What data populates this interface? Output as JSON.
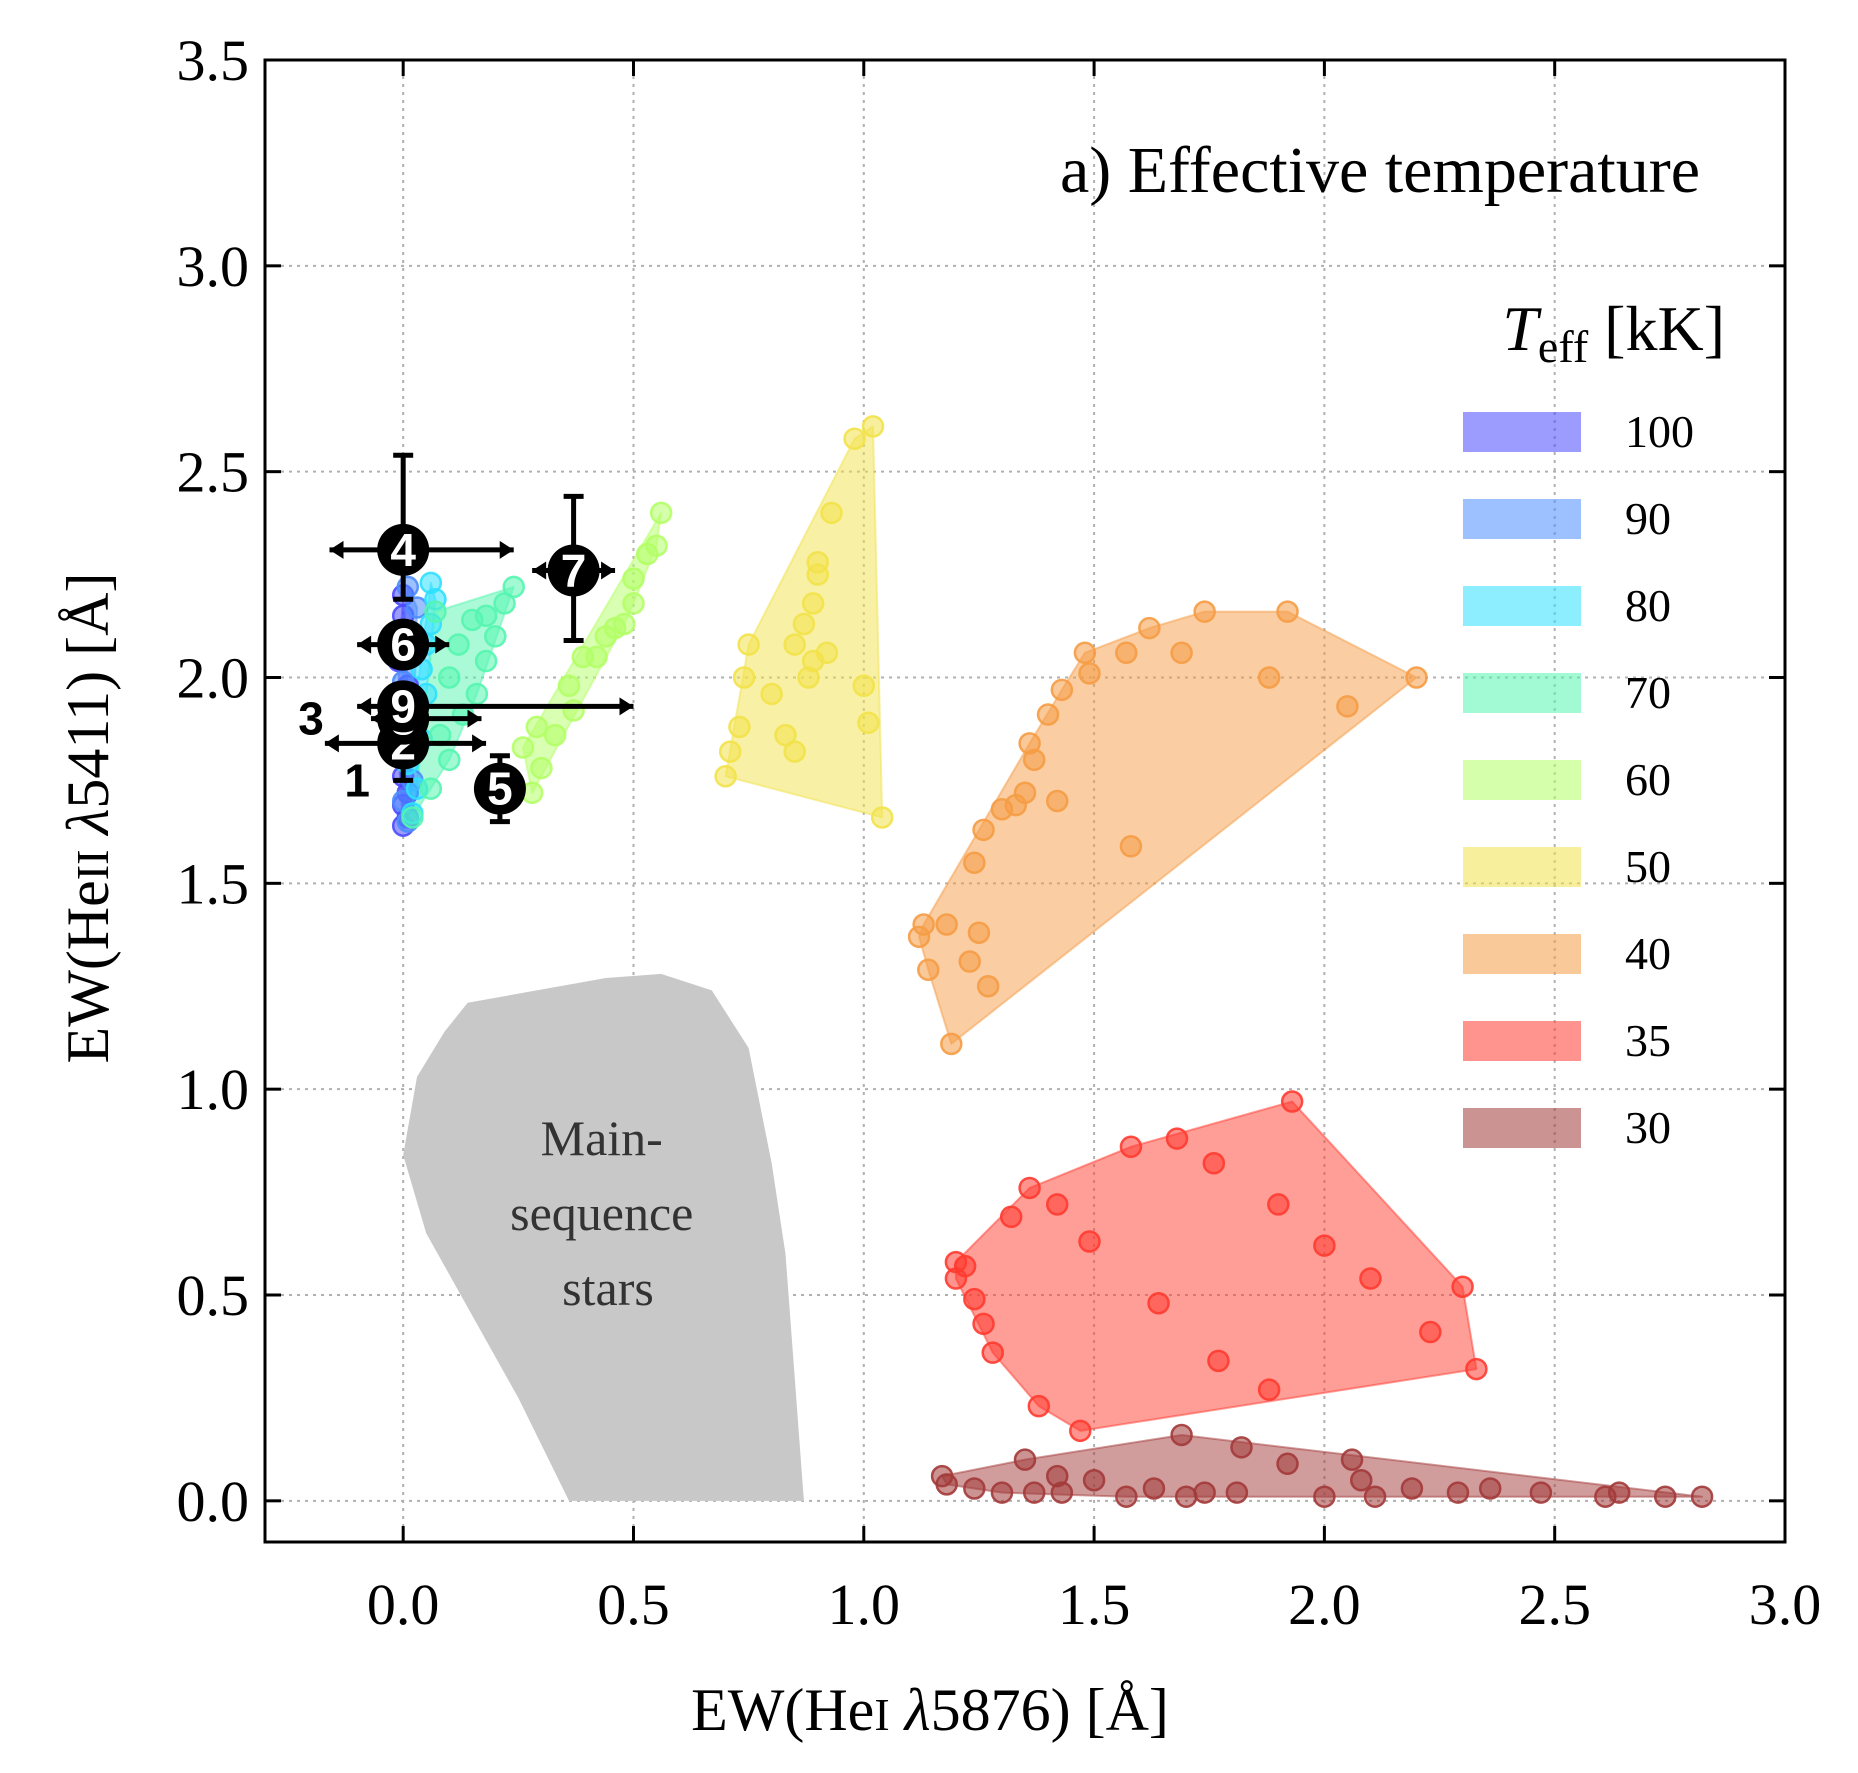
{
  "chart_data": {
    "type": "scatter",
    "title": "a) Effective temperature",
    "xlabel": "EW(He I λ5876) [Å]",
    "ylabel": "EW(He II λ5411) [Å]",
    "xlabel_parts": {
      "pre": "EW(He",
      "ion": "I",
      "mid": " ",
      "lambda": "λ",
      "post": "5876) [Å]"
    },
    "ylabel_parts": {
      "pre": "EW(He",
      "ion": "II",
      "mid": " ",
      "lambda": "λ",
      "post": "5411) [Å]"
    },
    "xlim": [
      -0.3,
      3.0
    ],
    "ylim": [
      -0.1,
      3.5
    ],
    "x_ticks": [
      "0.0",
      "0.5",
      "1.0",
      "1.5",
      "2.0",
      "2.5",
      "3.0"
    ],
    "y_ticks": [
      "0.0",
      "0.5",
      "1.0",
      "1.5",
      "2.0",
      "2.5",
      "3.0",
      "3.5"
    ],
    "grid": true,
    "legend": {
      "position": "right",
      "title_symbol": "T",
      "title_sub": "eff",
      "title_unit": " [kK]"
    },
    "main_sequence": {
      "label_lines": [
        "Main-",
        "sequence",
        "stars"
      ],
      "color": "#c8c8c8",
      "polygon": [
        [
          0.36,
          0.0
        ],
        [
          0.87,
          0.0
        ],
        [
          0.83,
          0.6
        ],
        [
          0.8,
          0.82
        ],
        [
          0.75,
          1.1
        ],
        [
          0.67,
          1.24
        ],
        [
          0.56,
          1.28
        ],
        [
          0.44,
          1.27
        ],
        [
          0.14,
          1.21
        ],
        [
          0.09,
          1.14
        ],
        [
          0.03,
          1.03
        ],
        [
          0.0,
          0.84
        ],
        [
          0.05,
          0.65
        ],
        [
          0.15,
          0.45
        ],
        [
          0.25,
          0.25
        ]
      ]
    },
    "series": [
      {
        "name": "100",
        "color": "#4b4bff",
        "points": [
          [
            0.0,
            1.64
          ],
          [
            0.01,
            1.66
          ],
          [
            0.0,
            1.69
          ],
          [
            0.01,
            1.72
          ],
          [
            0.0,
            1.76
          ],
          [
            -0.01,
            1.81
          ],
          [
            0.0,
            1.86
          ],
          [
            0.0,
            1.92
          ],
          [
            0.01,
            1.98
          ],
          [
            -0.01,
            2.04
          ],
          [
            0.0,
            2.1
          ],
          [
            0.0,
            2.15
          ],
          [
            0.0,
            2.2
          ]
        ]
      },
      {
        "name": "90",
        "color": "#4d8dff",
        "points": [
          [
            0.01,
            1.65
          ],
          [
            0.0,
            1.7
          ],
          [
            0.02,
            1.75
          ],
          [
            0.0,
            1.8
          ],
          [
            0.01,
            1.86
          ],
          [
            0.02,
            1.93
          ],
          [
            0.0,
            1.99
          ],
          [
            0.02,
            2.05
          ],
          [
            0.0,
            2.11
          ],
          [
            0.03,
            2.17
          ],
          [
            0.01,
            2.22
          ]
        ]
      },
      {
        "name": "80",
        "color": "#2ee0ff",
        "points": [
          [
            0.02,
            1.67
          ],
          [
            0.03,
            1.73
          ],
          [
            0.01,
            1.79
          ],
          [
            0.04,
            1.85
          ],
          [
            0.03,
            1.9
          ],
          [
            0.05,
            1.96
          ],
          [
            0.04,
            2.02
          ],
          [
            0.05,
            2.08
          ],
          [
            0.06,
            2.13
          ],
          [
            0.07,
            2.19
          ],
          [
            0.06,
            2.23
          ]
        ]
      },
      {
        "name": "70",
        "color": "#55f5b0",
        "points": [
          [
            0.02,
            1.66
          ],
          [
            0.06,
            1.73
          ],
          [
            0.1,
            1.8
          ],
          [
            0.08,
            1.86
          ],
          [
            0.13,
            1.91
          ],
          [
            0.16,
            1.96
          ],
          [
            0.1,
            2.0
          ],
          [
            0.18,
            2.04
          ],
          [
            0.12,
            2.08
          ],
          [
            0.2,
            2.1
          ],
          [
            0.15,
            2.14
          ],
          [
            0.22,
            2.18
          ],
          [
            0.18,
            2.15
          ],
          [
            0.24,
            2.22
          ],
          [
            0.07,
            2.16
          ]
        ]
      },
      {
        "name": "60",
        "color": "#b3ff66",
        "points": [
          [
            0.28,
            1.72
          ],
          [
            0.3,
            1.78
          ],
          [
            0.26,
            1.83
          ],
          [
            0.33,
            1.86
          ],
          [
            0.29,
            1.88
          ],
          [
            0.37,
            1.92
          ],
          [
            0.36,
            1.98
          ],
          [
            0.39,
            2.05
          ],
          [
            0.42,
            2.05
          ],
          [
            0.44,
            2.1
          ],
          [
            0.46,
            2.12
          ],
          [
            0.48,
            2.13
          ],
          [
            0.5,
            2.18
          ],
          [
            0.5,
            2.24
          ],
          [
            0.53,
            2.3
          ],
          [
            0.55,
            2.32
          ],
          [
            0.56,
            2.4
          ]
        ]
      },
      {
        "name": "50",
        "color": "#f2e24a",
        "points": [
          [
            0.7,
            1.76
          ],
          [
            0.71,
            1.82
          ],
          [
            0.73,
            1.88
          ],
          [
            0.74,
            2.0
          ],
          [
            0.75,
            2.08
          ],
          [
            0.8,
            1.96
          ],
          [
            0.83,
            1.86
          ],
          [
            0.85,
            2.08
          ],
          [
            0.85,
            1.82
          ],
          [
            0.87,
            2.13
          ],
          [
            0.88,
            2.0
          ],
          [
            0.89,
            2.18
          ],
          [
            0.9,
            2.25
          ],
          [
            0.9,
            2.28
          ],
          [
            0.93,
            2.4
          ],
          [
            0.98,
            2.58
          ],
          [
            1.02,
            2.61
          ],
          [
            1.0,
            1.98
          ],
          [
            1.01,
            1.89
          ],
          [
            1.04,
            1.66
          ],
          [
            0.92,
            2.06
          ],
          [
            0.89,
            2.04
          ]
        ]
      },
      {
        "name": "40",
        "color": "#f59c45",
        "points": [
          [
            1.19,
            1.11
          ],
          [
            1.14,
            1.29
          ],
          [
            1.12,
            1.37
          ],
          [
            1.13,
            1.4
          ],
          [
            1.18,
            1.4
          ],
          [
            1.23,
            1.31
          ],
          [
            1.25,
            1.38
          ],
          [
            1.27,
            1.25
          ],
          [
            1.24,
            1.55
          ],
          [
            1.26,
            1.63
          ],
          [
            1.3,
            1.68
          ],
          [
            1.33,
            1.69
          ],
          [
            1.35,
            1.72
          ],
          [
            1.36,
            1.84
          ],
          [
            1.37,
            1.8
          ],
          [
            1.4,
            1.91
          ],
          [
            1.42,
            1.7
          ],
          [
            1.43,
            1.97
          ],
          [
            1.48,
            2.06
          ],
          [
            1.49,
            2.01
          ],
          [
            1.57,
            2.06
          ],
          [
            1.58,
            1.59
          ],
          [
            1.62,
            2.12
          ],
          [
            1.69,
            2.06
          ],
          [
            1.74,
            2.16
          ],
          [
            1.88,
            2.0
          ],
          [
            1.92,
            2.16
          ],
          [
            2.05,
            1.93
          ],
          [
            2.2,
            2.0
          ]
        ]
      },
      {
        "name": "35",
        "color": "#ff3b30",
        "points": [
          [
            1.2,
            0.58
          ],
          [
            1.2,
            0.54
          ],
          [
            1.22,
            0.57
          ],
          [
            1.24,
            0.49
          ],
          [
            1.26,
            0.43
          ],
          [
            1.28,
            0.36
          ],
          [
            1.32,
            0.69
          ],
          [
            1.36,
            0.76
          ],
          [
            1.38,
            0.23
          ],
          [
            1.42,
            0.72
          ],
          [
            1.47,
            0.17
          ],
          [
            1.49,
            0.63
          ],
          [
            1.58,
            0.86
          ],
          [
            1.64,
            0.48
          ],
          [
            1.68,
            0.88
          ],
          [
            1.76,
            0.82
          ],
          [
            1.77,
            0.34
          ],
          [
            1.88,
            0.27
          ],
          [
            1.9,
            0.72
          ],
          [
            1.93,
            0.97
          ],
          [
            2.0,
            0.62
          ],
          [
            2.1,
            0.54
          ],
          [
            2.23,
            0.41
          ],
          [
            2.3,
            0.52
          ],
          [
            2.33,
            0.32
          ]
        ]
      },
      {
        "name": "30",
        "color": "#a33a3a",
        "points": [
          [
            1.17,
            0.06
          ],
          [
            1.18,
            0.04
          ],
          [
            1.24,
            0.03
          ],
          [
            1.3,
            0.02
          ],
          [
            1.35,
            0.1
          ],
          [
            1.37,
            0.02
          ],
          [
            1.42,
            0.06
          ],
          [
            1.43,
            0.02
          ],
          [
            1.5,
            0.05
          ],
          [
            1.57,
            0.01
          ],
          [
            1.63,
            0.03
          ],
          [
            1.69,
            0.16
          ],
          [
            1.7,
            0.01
          ],
          [
            1.74,
            0.02
          ],
          [
            1.81,
            0.02
          ],
          [
            1.82,
            0.13
          ],
          [
            1.92,
            0.09
          ],
          [
            2.0,
            0.01
          ],
          [
            2.06,
            0.1
          ],
          [
            2.08,
            0.05
          ],
          [
            2.11,
            0.01
          ],
          [
            2.19,
            0.03
          ],
          [
            2.29,
            0.02
          ],
          [
            2.36,
            0.03
          ],
          [
            2.47,
            0.02
          ],
          [
            2.61,
            0.01
          ],
          [
            2.64,
            0.02
          ],
          [
            2.74,
            0.01
          ],
          [
            2.82,
            0.01
          ]
        ]
      }
    ],
    "stars": [
      {
        "id": "1",
        "x": -0.1,
        "y": 1.75,
        "xerr": [
          0,
          0
        ],
        "yerr": [
          0.03,
          0.0
        ],
        "label_only": true
      },
      {
        "id": "2",
        "x": 0.0,
        "y": 1.84,
        "xerr": [
          0.17,
          0.18
        ],
        "yerr": [
          0.09,
          0.0
        ]
      },
      {
        "id": "3",
        "x": -0.2,
        "y": 1.9,
        "xerr": [
          0,
          0
        ],
        "yerr": [
          0,
          0
        ],
        "label_only": true
      },
      {
        "id": "8",
        "x": 0.0,
        "y": 1.9,
        "xerr": [
          0.07,
          0.17
        ],
        "yerr": [
          0,
          0
        ]
      },
      {
        "id": "9",
        "x": 0.0,
        "y": 1.93,
        "xerr": [
          0.1,
          0.5
        ],
        "yerr": [
          0,
          0
        ]
      },
      {
        "id": "4",
        "x": 0.0,
        "y": 2.31,
        "xerr": [
          0.16,
          0.24
        ],
        "yerr": [
          0.12,
          0.23
        ]
      },
      {
        "id": "5",
        "x": 0.21,
        "y": 1.73,
        "xerr": [
          0.04,
          0.04
        ],
        "yerr": [
          0.08,
          0.08
        ]
      },
      {
        "id": "6",
        "x": 0.0,
        "y": 2.08,
        "xerr": [
          0.1,
          0.1
        ],
        "yerr": [
          0.0,
          0.0
        ]
      },
      {
        "id": "7",
        "x": 0.37,
        "y": 2.26,
        "xerr": [
          0.09,
          0.09
        ],
        "yerr": [
          0.17,
          0.18
        ]
      }
    ]
  }
}
